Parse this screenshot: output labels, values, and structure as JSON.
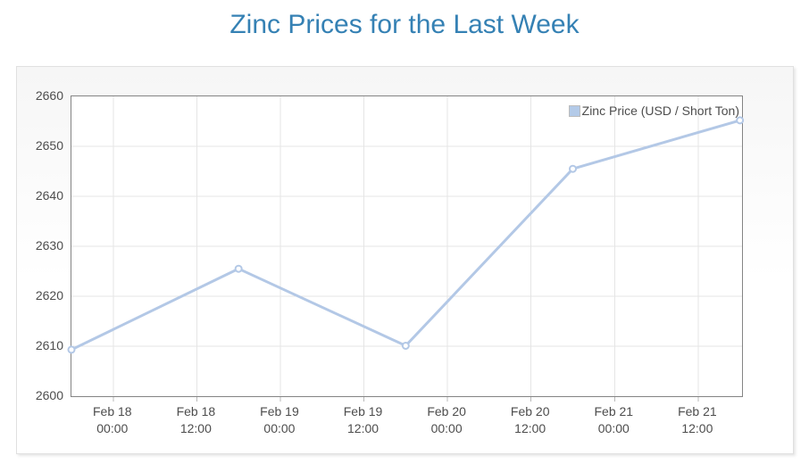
{
  "chart_data": {
    "type": "line",
    "title": "Zinc Prices for the Last Week",
    "legend": {
      "position": "top-right",
      "items": [
        "Zinc Price (USD / Short Ton)"
      ]
    },
    "colors": {
      "title": "#3581b4",
      "series_line": "#b3c8e6",
      "marker_fill": "#ffffff",
      "legend_swatch": "#b3cae8",
      "axis_text": "#4d4d4d",
      "gridline": "#e5e5e5",
      "plot_border": "#848484"
    },
    "grid": true,
    "x_axis": {
      "type": "time",
      "range_hours": [
        0,
        96.3
      ],
      "range_start_estimated": "Feb 17 ~18:00",
      "ticks": [
        {
          "hours": 6,
          "line1": "Feb 18",
          "line2": "00:00"
        },
        {
          "hours": 18,
          "line1": "Feb 18",
          "line2": "12:00"
        },
        {
          "hours": 30,
          "line1": "Feb 19",
          "line2": "00:00"
        },
        {
          "hours": 42,
          "line1": "Feb 19",
          "line2": "12:00"
        },
        {
          "hours": 54,
          "line1": "Feb 20",
          "line2": "00:00"
        },
        {
          "hours": 66,
          "line1": "Feb 20",
          "line2": "12:00"
        },
        {
          "hours": 78,
          "line1": "Feb 21",
          "line2": "00:00"
        },
        {
          "hours": 90,
          "line1": "Feb 21",
          "line2": "12:00"
        }
      ]
    },
    "y_axis": {
      "min": 2600,
      "max": 2660,
      "tick_step": 10,
      "ticks": [
        2660,
        2650,
        2640,
        2630,
        2620,
        2610,
        2600
      ]
    },
    "series": [
      {
        "name": "Zinc Price (USD / Short Ton)",
        "marker": "circle",
        "points": [
          {
            "x_hours": 0,
            "x_estimated": "Feb 17 ~18:00",
            "y": 2609.3
          },
          {
            "x_hours": 24,
            "x_estimated": "Feb 18 ~18:00",
            "y": 2625.5
          },
          {
            "x_hours": 48,
            "x_estimated": "Feb 19 ~18:00",
            "y": 2610.1
          },
          {
            "x_hours": 72,
            "x_estimated": "Feb 20 ~18:00",
            "y": 2645.5
          },
          {
            "x_hours": 96,
            "x_estimated": "Feb 21 ~18:00",
            "y": 2655.2
          }
        ]
      }
    ]
  }
}
